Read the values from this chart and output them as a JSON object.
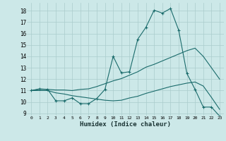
{
  "xlabel": "Humidex (Indice chaleur)",
  "background_color": "#cce8e8",
  "grid_color": "#aacccc",
  "line_color": "#1a6b6b",
  "xlim": [
    -0.5,
    23.5
  ],
  "ylim": [
    8.8,
    18.7
  ],
  "yticks": [
    9,
    10,
    11,
    12,
    13,
    14,
    15,
    16,
    17,
    18
  ],
  "xticks": [
    0,
    1,
    2,
    3,
    4,
    5,
    6,
    7,
    8,
    9,
    10,
    11,
    12,
    13,
    14,
    15,
    16,
    17,
    18,
    19,
    20,
    21,
    22,
    23
  ],
  "line1_x": [
    0,
    1,
    2,
    3,
    4,
    5,
    6,
    7,
    8,
    9,
    10,
    11,
    12,
    13,
    14,
    15,
    16,
    17,
    18,
    19,
    20,
    21,
    22,
    23
  ],
  "line1_y": [
    11.0,
    11.15,
    11.1,
    10.1,
    10.1,
    10.35,
    9.85,
    9.85,
    10.3,
    11.1,
    14.0,
    12.55,
    12.65,
    15.5,
    16.55,
    18.05,
    17.8,
    18.2,
    16.3,
    12.5,
    11.1,
    9.55,
    9.55,
    8.75
  ],
  "line2_x": [
    0,
    1,
    2,
    3,
    4,
    5,
    6,
    7,
    8,
    9,
    10,
    11,
    12,
    13,
    14,
    15,
    16,
    17,
    18,
    19,
    20,
    21,
    22,
    23
  ],
  "line2_y": [
    11.0,
    11.1,
    11.1,
    11.05,
    11.05,
    11.0,
    11.1,
    11.15,
    11.35,
    11.6,
    11.85,
    12.05,
    12.35,
    12.65,
    13.05,
    13.3,
    13.6,
    13.9,
    14.2,
    14.5,
    14.72,
    14.0,
    13.0,
    12.0
  ],
  "line3_x": [
    0,
    1,
    2,
    3,
    4,
    5,
    6,
    7,
    8,
    9,
    10,
    11,
    12,
    13,
    14,
    15,
    16,
    17,
    18,
    19,
    20,
    21,
    22,
    23
  ],
  "line3_y": [
    11.0,
    11.0,
    11.0,
    10.8,
    10.7,
    10.55,
    10.45,
    10.35,
    10.25,
    10.15,
    10.1,
    10.15,
    10.35,
    10.5,
    10.75,
    10.95,
    11.15,
    11.35,
    11.5,
    11.65,
    11.75,
    11.4,
    10.4,
    9.35
  ]
}
